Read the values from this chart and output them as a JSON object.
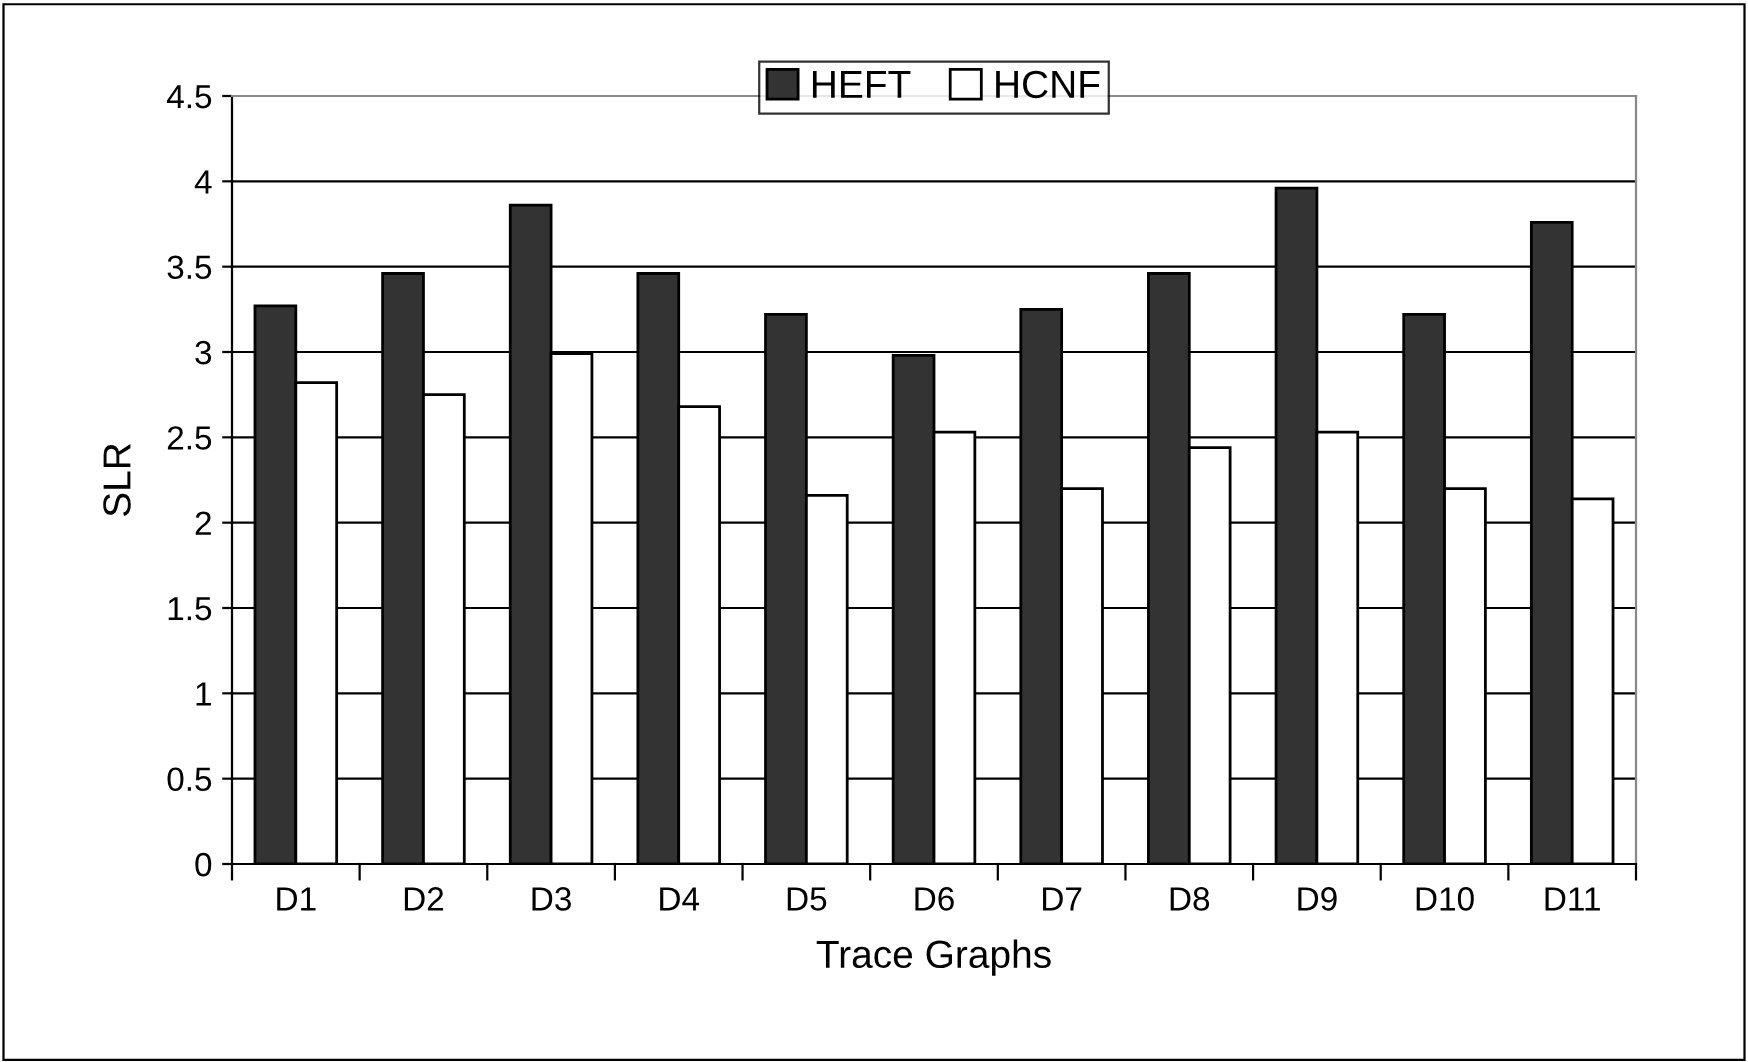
{
  "chart_data": {
    "type": "bar",
    "xlabel": "Trace Graphs",
    "ylabel": "SLR",
    "categories": [
      "D1",
      "D2",
      "D3",
      "D4",
      "D5",
      "D6",
      "D7",
      "D8",
      "D9",
      "D10",
      "D11"
    ],
    "series": [
      {
        "name": "HEFT",
        "color": "#333333",
        "values": [
          3.27,
          3.46,
          3.86,
          3.46,
          3.22,
          2.98,
          3.25,
          3.46,
          3.96,
          3.22,
          3.76
        ]
      },
      {
        "name": "HCNF",
        "color": "#ffffff",
        "values": [
          2.82,
          2.75,
          2.99,
          2.68,
          2.16,
          2.53,
          2.2,
          2.44,
          2.53,
          2.2,
          2.14
        ]
      }
    ],
    "ylim": [
      0,
      4.5
    ],
    "yticks": [
      0,
      0.5,
      1,
      1.5,
      2,
      2.5,
      3,
      3.5,
      4,
      4.5
    ],
    "grid": "y",
    "legend": "top"
  }
}
